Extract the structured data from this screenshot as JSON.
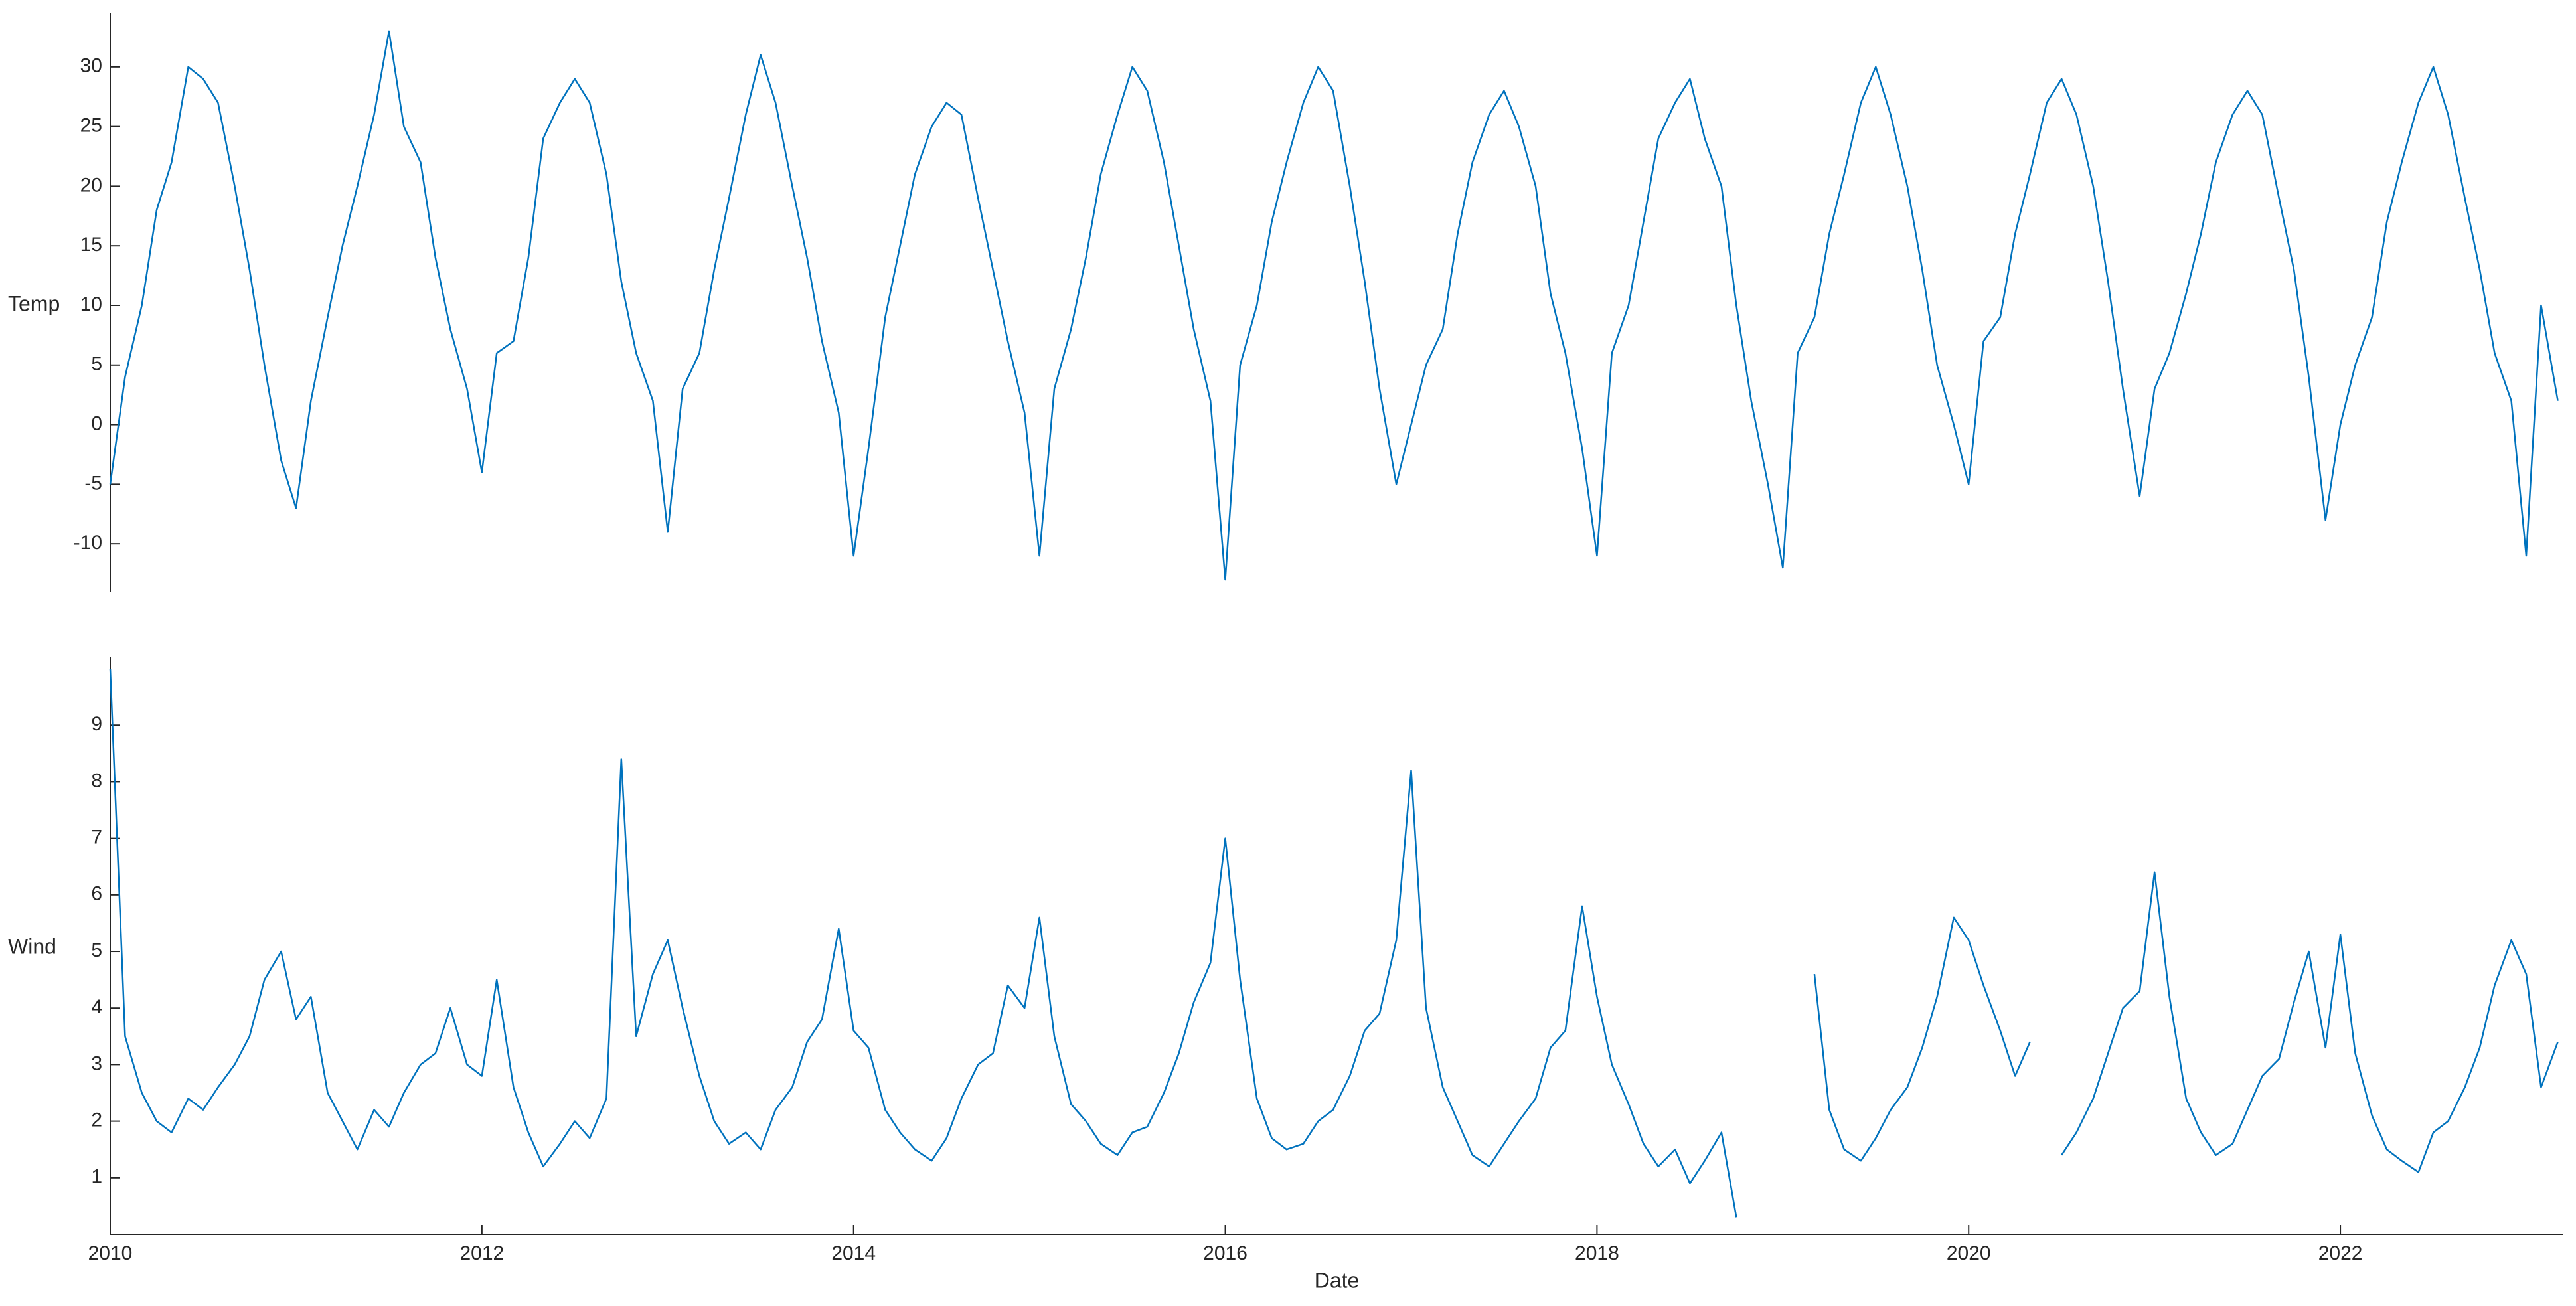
{
  "chart_data": [
    {
      "type": "line",
      "ylabel": "Temp",
      "color": "#0072bd",
      "x": [
        2010,
        2010.08,
        2010.17,
        2010.25,
        2010.33,
        2010.42,
        2010.5,
        2010.58,
        2010.67,
        2010.75,
        2010.83,
        2010.92,
        2011,
        2011.08,
        2011.17,
        2011.25,
        2011.33,
        2011.42,
        2011.5,
        2011.58,
        2011.67,
        2011.75,
        2011.83,
        2011.92,
        2012,
        2012.08,
        2012.17,
        2012.25,
        2012.33,
        2012.42,
        2012.5,
        2012.58,
        2012.67,
        2012.75,
        2012.83,
        2012.92,
        2013,
        2013.08,
        2013.17,
        2013.25,
        2013.33,
        2013.42,
        2013.5,
        2013.58,
        2013.67,
        2013.75,
        2013.83,
        2013.92,
        2014,
        2014.08,
        2014.17,
        2014.25,
        2014.33,
        2014.42,
        2014.5,
        2014.58,
        2014.67,
        2014.75,
        2014.83,
        2014.92,
        2015,
        2015.08,
        2015.17,
        2015.25,
        2015.33,
        2015.42,
        2015.5,
        2015.58,
        2015.67,
        2015.75,
        2015.83,
        2015.92,
        2016,
        2016.08,
        2016.17,
        2016.25,
        2016.33,
        2016.42,
        2016.5,
        2016.58,
        2016.67,
        2016.75,
        2016.83,
        2016.92,
        2017,
        2017.08,
        2017.17,
        2017.25,
        2017.33,
        2017.42,
        2017.5,
        2017.58,
        2017.67,
        2017.75,
        2017.83,
        2017.92,
        2018,
        2018.08,
        2018.17,
        2018.25,
        2018.33,
        2018.42,
        2018.5,
        2018.58,
        2018.67,
        2018.75,
        2018.83,
        2018.92,
        2019,
        2019.08,
        2019.17,
        2019.25,
        2019.33,
        2019.42,
        2019.5,
        2019.58,
        2019.67,
        2019.75,
        2019.83,
        2019.92,
        2020,
        2020.08,
        2020.17,
        2020.25,
        2020.33,
        2020.42,
        2020.5,
        2020.58,
        2020.67,
        2020.75,
        2020.83,
        2020.92,
        2021,
        2021.08,
        2021.17,
        2021.25,
        2021.33,
        2021.42,
        2021.5,
        2021.58,
        2021.67,
        2021.75,
        2021.83,
        2021.92,
        2022,
        2022.08,
        2022.17,
        2022.25,
        2022.33,
        2022.42,
        2022.5,
        2022.58,
        2022.67,
        2022.75,
        2022.83,
        2022.92,
        2023,
        2023.08,
        2023.17
      ],
      "values": [
        -5,
        4,
        10,
        18,
        22,
        30,
        29,
        27,
        20,
        13,
        5,
        -3,
        -7,
        2,
        9,
        15,
        20,
        26,
        33,
        25,
        22,
        14,
        8,
        3,
        -4,
        6,
        7,
        14,
        24,
        27,
        29,
        27,
        21,
        12,
        6,
        2,
        -9,
        3,
        6,
        13,
        19,
        26,
        31,
        27,
        20,
        14,
        7,
        1,
        -11,
        -2,
        9,
        15,
        21,
        25,
        27,
        26,
        19,
        13,
        7,
        1,
        -11,
        3,
        8,
        14,
        21,
        26,
        30,
        28,
        22,
        15,
        8,
        2,
        -13,
        5,
        10,
        17,
        22,
        27,
        30,
        28,
        20,
        12,
        3,
        -5,
        0,
        5,
        8,
        16,
        22,
        26,
        28,
        25,
        20,
        11,
        6,
        -2,
        -11,
        6,
        10,
        17,
        24,
        27,
        29,
        24,
        20,
        10,
        2,
        -5,
        -12,
        6,
        9,
        16,
        21,
        27,
        30,
        26,
        20,
        13,
        5,
        0,
        -5,
        7,
        9,
        16,
        21,
        27,
        29,
        26,
        20,
        12,
        3,
        -6,
        3,
        6,
        11,
        16,
        22,
        26,
        28,
        26,
        19,
        13,
        4,
        -8,
        0,
        5,
        9,
        17,
        22,
        27,
        30,
        26,
        19,
        13,
        6,
        2,
        -11,
        10,
        2
      ],
      "xlim": [
        2010,
        2023.2
      ],
      "ylim": [
        -14,
        34.5
      ],
      "yticks": [
        -10,
        -5,
        0,
        5,
        10,
        15,
        20,
        25,
        30
      ]
    },
    {
      "type": "line",
      "ylabel": "Wind",
      "color": "#0072bd",
      "xlabel": "Date",
      "x": [
        2010,
        2010.08,
        2010.17,
        2010.25,
        2010.33,
        2010.42,
        2010.5,
        2010.58,
        2010.67,
        2010.75,
        2010.83,
        2010.92,
        2011,
        2011.08,
        2011.17,
        2011.25,
        2011.33,
        2011.42,
        2011.5,
        2011.58,
        2011.67,
        2011.75,
        2011.83,
        2011.92,
        2012,
        2012.08,
        2012.17,
        2012.25,
        2012.33,
        2012.42,
        2012.5,
        2012.58,
        2012.67,
        2012.75,
        2012.83,
        2012.92,
        2013,
        2013.08,
        2013.17,
        2013.25,
        2013.33,
        2013.42,
        2013.5,
        2013.58,
        2013.67,
        2013.75,
        2013.83,
        2013.92,
        2014,
        2014.08,
        2014.17,
        2014.25,
        2014.33,
        2014.42,
        2014.5,
        2014.58,
        2014.67,
        2014.75,
        2014.83,
        2014.92,
        2015,
        2015.08,
        2015.17,
        2015.25,
        2015.33,
        2015.42,
        2015.5,
        2015.58,
        2015.67,
        2015.75,
        2015.83,
        2015.92,
        2016,
        2016.08,
        2016.17,
        2016.25,
        2016.33,
        2016.42,
        2016.5,
        2016.58,
        2016.67,
        2016.75,
        2016.83,
        2016.92,
        2017,
        2017.08,
        2017.17,
        2017.25,
        2017.33,
        2017.42,
        2017.5,
        2017.58,
        2017.67,
        2017.75,
        2017.83,
        2017.92,
        2018,
        2018.08,
        2018.17,
        2018.25,
        2018.33,
        2018.42,
        2018.5,
        2018.58,
        2018.67,
        2018.75,
        2018.83,
        2018.92,
        2019,
        2019.08,
        2019.17,
        2019.25,
        2019.33,
        2019.42,
        2019.5,
        2019.58,
        2019.67,
        2019.75,
        2019.83,
        2019.92,
        2020,
        2020.08,
        2020.17,
        2020.25,
        2020.33,
        2020.42,
        2020.5,
        2020.58,
        2020.67,
        2020.75,
        2020.83,
        2020.92,
        2021,
        2021.08,
        2021.17,
        2021.25,
        2021.33,
        2021.42,
        2021.5,
        2021.58,
        2021.67,
        2021.75,
        2021.83,
        2021.92,
        2022,
        2022.08,
        2022.17,
        2022.25,
        2022.33,
        2022.42,
        2022.5,
        2022.58,
        2022.67,
        2022.75,
        2022.83,
        2022.92,
        2023,
        2023.08,
        2023.17
      ],
      "values": [
        10,
        3.5,
        2.5,
        2,
        1.8,
        2.4,
        2.2,
        2.6,
        3,
        3.5,
        4.5,
        5,
        3.8,
        4.2,
        2.5,
        2,
        1.5,
        2.2,
        1.9,
        2.5,
        3,
        3.2,
        4,
        3,
        2.8,
        4.5,
        2.6,
        1.8,
        1.2,
        1.6,
        2,
        1.7,
        2.4,
        8.4,
        3.5,
        4.6,
        5.2,
        4,
        2.8,
        2,
        1.6,
        1.8,
        1.5,
        2.2,
        2.6,
        3.4,
        3.8,
        5.4,
        3.6,
        3.3,
        2.2,
        1.8,
        1.5,
        1.3,
        1.7,
        2.4,
        3,
        3.2,
        4.4,
        4,
        5.6,
        3.5,
        2.3,
        2,
        1.6,
        1.4,
        1.8,
        1.9,
        2.5,
        3.2,
        4.1,
        4.8,
        7,
        4.5,
        2.4,
        1.7,
        1.5,
        1.6,
        2,
        2.2,
        2.8,
        3.6,
        3.9,
        5.2,
        8.2,
        4,
        2.6,
        2,
        1.4,
        1.2,
        1.6,
        2,
        2.4,
        3.3,
        3.6,
        5.8,
        4.2,
        3,
        2.3,
        1.6,
        1.2,
        1.5,
        0.9,
        1.3,
        1.8,
        0.3,
        null,
        null,
        null,
        null,
        4.6,
        2.2,
        1.5,
        1.3,
        1.7,
        2.2,
        2.6,
        3.3,
        4.2,
        5.6,
        5.2,
        4.4,
        3.6,
        2.8,
        3.4,
        null,
        1.4,
        1.8,
        2.4,
        3.2,
        4,
        4.3,
        6.4,
        4.2,
        2.4,
        1.8,
        1.4,
        1.6,
        2.2,
        2.8,
        3.1,
        4.1,
        5,
        3.3,
        5.3,
        3.2,
        2.1,
        1.5,
        1.3,
        1.1,
        1.8,
        2,
        2.6,
        3.3,
        4.4,
        5.2,
        4.6,
        2.6,
        3.4
      ],
      "xlim": [
        2010,
        2023.2
      ],
      "xticks": [
        2010,
        2012,
        2014,
        2016,
        2018,
        2020,
        2022
      ],
      "ylim": [
        0,
        10.2
      ],
      "yticks": [
        1,
        2,
        3,
        4,
        5,
        6,
        7,
        8,
        9
      ]
    }
  ]
}
